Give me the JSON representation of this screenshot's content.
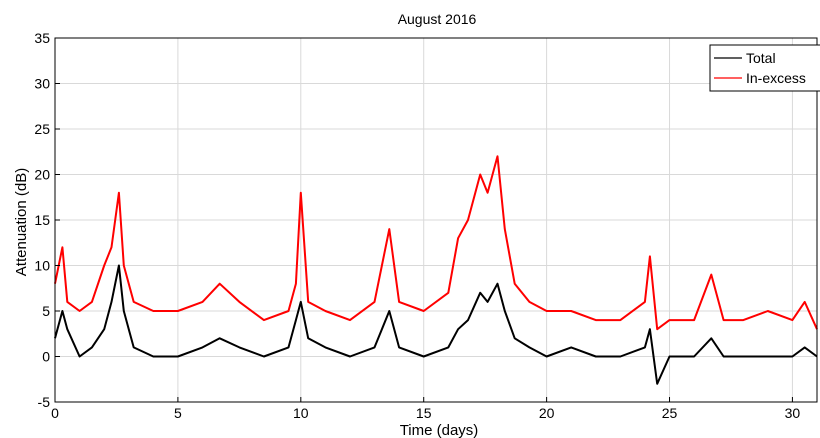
{
  "chart_data": {
    "type": "line",
    "title": "August 2016",
    "xlabel": "Time (days)",
    "ylabel": "Attenuation (dB)",
    "xlim": [
      0,
      31
    ],
    "ylim": [
      -5,
      35
    ],
    "xticks": [
      0,
      5,
      10,
      15,
      20,
      25,
      30
    ],
    "yticks": [
      -5,
      0,
      5,
      10,
      15,
      20,
      25,
      30,
      35
    ],
    "grid": true,
    "legend_position": "top-right",
    "series": [
      {
        "name": "Total",
        "color": "#000000",
        "x": [
          0,
          0.3,
          0.5,
          1.0,
          1.5,
          2.0,
          2.3,
          2.6,
          2.8,
          3.2,
          4.0,
          5.0,
          6.0,
          6.7,
          7.5,
          8.5,
          9.5,
          9.8,
          10.0,
          10.3,
          11.0,
          12.0,
          13.0,
          13.3,
          13.6,
          14.0,
          15.0,
          16.0,
          16.4,
          16.8,
          17.3,
          17.6,
          18.0,
          18.3,
          18.7,
          19.3,
          20.0,
          21.0,
          22.0,
          23.0,
          24.0,
          24.2,
          24.5,
          25.0,
          26.0,
          26.7,
          27.2,
          28.0,
          29.0,
          30.0,
          30.5,
          31.0
        ],
        "values": [
          2,
          5,
          3,
          0,
          1,
          3,
          6,
          10,
          5,
          1,
          0,
          0,
          1,
          2,
          1,
          0,
          1,
          4,
          6,
          2,
          1,
          0,
          1,
          3,
          5,
          1,
          0,
          1,
          3,
          4,
          7,
          6,
          8,
          5,
          2,
          1,
          0,
          1,
          0,
          0,
          1,
          3,
          -3,
          0,
          0,
          2,
          0,
          0,
          0,
          0,
          1,
          0
        ]
      },
      {
        "name": "In-excess",
        "color": "#ff0000",
        "x": [
          0,
          0.3,
          0.5,
          1.0,
          1.5,
          2.0,
          2.3,
          2.6,
          2.8,
          3.2,
          4.0,
          5.0,
          6.0,
          6.7,
          7.5,
          8.5,
          9.5,
          9.8,
          10.0,
          10.3,
          11.0,
          12.0,
          13.0,
          13.3,
          13.6,
          14.0,
          15.0,
          16.0,
          16.4,
          16.8,
          17.3,
          17.6,
          18.0,
          18.3,
          18.7,
          19.3,
          20.0,
          21.0,
          22.0,
          23.0,
          24.0,
          24.2,
          24.5,
          25.0,
          26.0,
          26.7,
          27.2,
          28.0,
          29.0,
          30.0,
          30.5,
          31.0
        ],
        "values": [
          8,
          12,
          6,
          5,
          6,
          10,
          12,
          18,
          10,
          6,
          5,
          5,
          6,
          8,
          6,
          4,
          5,
          8,
          18,
          6,
          5,
          4,
          6,
          10,
          14,
          6,
          5,
          7,
          13,
          15,
          20,
          18,
          22,
          14,
          8,
          6,
          5,
          5,
          4,
          4,
          6,
          11,
          3,
          4,
          4,
          9,
          4,
          4,
          5,
          4,
          6,
          3
        ]
      }
    ]
  }
}
